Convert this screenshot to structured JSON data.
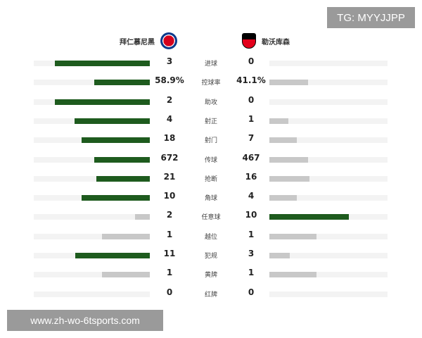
{
  "watermark_top": "TG: MYYJJPP",
  "watermark_bottom": "www.zh-wo-6tsports.com",
  "home_team": {
    "name": "拜仁慕尼黑",
    "badge_icon": "bayern-badge-icon"
  },
  "away_team": {
    "name": "勒沃库森",
    "badge_icon": "leverkusen-badge-icon"
  },
  "colors": {
    "leading": "#1e5b1e",
    "trailing": "#c8c8c8",
    "track": "#f3f3f3"
  },
  "stats": [
    {
      "label": "进球",
      "home": "3",
      "away": "0",
      "home_ratio": 0.82,
      "away_ratio": 0.0,
      "leader": "home"
    },
    {
      "label": "控球率",
      "home": "58.9%",
      "away": "41.1%",
      "home_ratio": 0.48,
      "away_ratio": 0.33,
      "leader": "home"
    },
    {
      "label": "助攻",
      "home": "2",
      "away": "0",
      "home_ratio": 0.82,
      "away_ratio": 0.0,
      "leader": "home"
    },
    {
      "label": "射正",
      "home": "4",
      "away": "1",
      "home_ratio": 0.65,
      "away_ratio": 0.16,
      "leader": "home"
    },
    {
      "label": "射门",
      "home": "18",
      "away": "7",
      "home_ratio": 0.59,
      "away_ratio": 0.23,
      "leader": "home"
    },
    {
      "label": "传球",
      "home": "672",
      "away": "467",
      "home_ratio": 0.48,
      "away_ratio": 0.33,
      "leader": "home"
    },
    {
      "label": "抢断",
      "home": "21",
      "away": "16",
      "home_ratio": 0.46,
      "away_ratio": 0.34,
      "leader": "home"
    },
    {
      "label": "角球",
      "home": "10",
      "away": "4",
      "home_ratio": 0.59,
      "away_ratio": 0.23,
      "leader": "home"
    },
    {
      "label": "任意球",
      "home": "2",
      "away": "10",
      "home_ratio": 0.13,
      "away_ratio": 0.67,
      "leader": "away"
    },
    {
      "label": "越位",
      "home": "1",
      "away": "1",
      "home_ratio": 0.41,
      "away_ratio": 0.4,
      "leader": "none"
    },
    {
      "label": "犯规",
      "home": "11",
      "away": "3",
      "home_ratio": 0.64,
      "away_ratio": 0.17,
      "leader": "home"
    },
    {
      "label": "黄牌",
      "home": "1",
      "away": "1",
      "home_ratio": 0.41,
      "away_ratio": 0.4,
      "leader": "none"
    },
    {
      "label": "红牌",
      "home": "0",
      "away": "0",
      "home_ratio": 0.0,
      "away_ratio": 0.0,
      "leader": "none"
    }
  ]
}
